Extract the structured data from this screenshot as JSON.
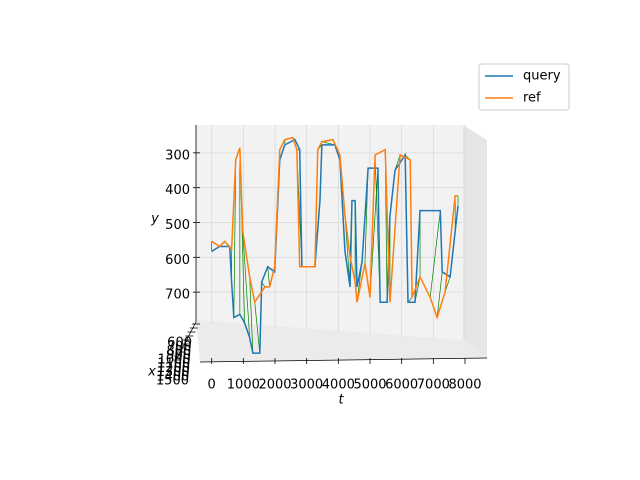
{
  "chart_data": {
    "type": "line3d",
    "xlabel": "t",
    "ylabel": "y",
    "zlabel": "x",
    "xlim": [
      -400,
      8600
    ],
    "xticks": [
      0,
      1000,
      2000,
      3000,
      4000,
      5000,
      6000,
      7000,
      8000
    ],
    "ylim": [
      220,
      780
    ],
    "yticks": [
      300,
      400,
      500,
      600,
      700
    ],
    "y_inverted": true,
    "zlim": [
      600,
      1500
    ],
    "zticks": [
      600,
      700,
      800,
      900,
      1000,
      1100,
      1200,
      1300,
      1400,
      1500
    ],
    "grid": true,
    "legend": "upper right",
    "alignment_color": "#008000",
    "series": [
      {
        "name": "query",
        "color": "#1f77b4",
        "x": [
          0,
          250,
          570,
          630,
          700,
          890,
          1040,
          1200,
          1300,
          1520,
          1580,
          1770,
          1990,
          2150,
          2310,
          2630,
          2780,
          2850,
          3260,
          3420,
          3480,
          3890,
          4050,
          4210,
          4370,
          4430,
          4530,
          4590,
          4750,
          4940,
          5250,
          5320,
          5540,
          5630,
          5790,
          6110,
          6200,
          6420,
          6580,
          7220,
          7280,
          7530,
          7690,
          7780
        ],
        "values": [
          583,
          569,
          569,
          671,
          773,
          764,
          788,
          831,
          875,
          875,
          671,
          627,
          642,
          320,
          277,
          262,
          291,
          627,
          627,
          437,
          277,
          277,
          320,
          583,
          685,
          437,
          437,
          685,
          612,
          344,
          344,
          729,
          729,
          481,
          350,
          306,
          729,
          729,
          466,
          466,
          642,
          656,
          525,
          452
        ]
      },
      {
        "name": "ref",
        "color": "#ff7f0e",
        "x": [
          0,
          250,
          410,
          630,
          760,
          890,
          980,
          1200,
          1360,
          1680,
          1830,
          1990,
          2150,
          2310,
          2560,
          2690,
          2780,
          3260,
          3350,
          3480,
          3830,
          4050,
          4210,
          4370,
          4530,
          4590,
          4840,
          5000,
          5160,
          5480,
          5630,
          5950,
          6270,
          6330,
          6580,
          6900,
          7120,
          7370,
          7690,
          7780
        ],
        "values": [
          554,
          569,
          554,
          577,
          320,
          285,
          525,
          656,
          729,
          685,
          685,
          627,
          291,
          262,
          256,
          291,
          627,
          627,
          291,
          268,
          262,
          306,
          481,
          598,
          671,
          729,
          618,
          715,
          306,
          291,
          729,
          306,
          320,
          715,
          656,
          715,
          773,
          700,
          423,
          423
        ]
      }
    ]
  }
}
